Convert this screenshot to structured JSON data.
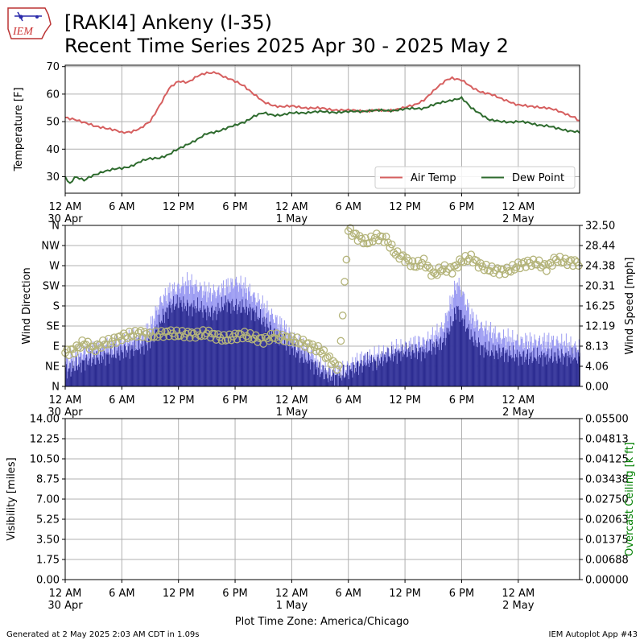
{
  "header": {
    "logo_text": "IEM",
    "title_line1": "[RAKI4] Ankeny (I-35)",
    "title_line2": "Recent Time Series 2025 Apr 30 - 2025 May 2"
  },
  "footer": {
    "generated": "Generated at 2 May 2025 2:03 AM CDT in 1.09s",
    "app": "IEM Autoplot App #43",
    "timezone_label": "Plot Time Zone: America/Chicago"
  },
  "x_axis": {
    "range_hours": [
      0,
      54.5
    ],
    "ticks": [
      {
        "h": 0,
        "label": "12 AM",
        "sub": "30 Apr"
      },
      {
        "h": 6,
        "label": "6 AM",
        "sub": ""
      },
      {
        "h": 12,
        "label": "12 PM",
        "sub": ""
      },
      {
        "h": 18,
        "label": "6 PM",
        "sub": ""
      },
      {
        "h": 24,
        "label": "12 AM",
        "sub": "1 May"
      },
      {
        "h": 30,
        "label": "6 AM",
        "sub": ""
      },
      {
        "h": 36,
        "label": "12 PM",
        "sub": ""
      },
      {
        "h": 42,
        "label": "6 PM",
        "sub": ""
      },
      {
        "h": 48,
        "label": "12 AM",
        "sub": "2 May"
      }
    ]
  },
  "colors": {
    "air_temp": "#d65f5f",
    "dew_point": "#2e6b2e",
    "gust": "#9b9bf2",
    "speed": "#2a2a8f",
    "direction": "#b4b47a",
    "ceiling_label": "#008000",
    "grid": "#b0b0b0"
  },
  "chart_data": [
    {
      "type": "line",
      "ylabel": "Temperature [F]",
      "ylim": [
        24,
        70.5
      ],
      "yticks": [
        "30",
        "40",
        "50",
        "60",
        "70"
      ],
      "ytick_values": [
        30,
        40,
        50,
        60,
        70
      ],
      "grid": true,
      "legend_placement": "lower-right",
      "series": [
        {
          "name": "Air Temp",
          "x": [
            0,
            1,
            2,
            3,
            4,
            5,
            5.5,
            6,
            7,
            8,
            9,
            10,
            11,
            12,
            13,
            14,
            15,
            16,
            17,
            18,
            19,
            20,
            21,
            22,
            23,
            24,
            26,
            28,
            30,
            32,
            34,
            36,
            37,
            38,
            39,
            40,
            40.5,
            41,
            42,
            43,
            44,
            45,
            46,
            47,
            48,
            49,
            50,
            51,
            52,
            53,
            54,
            54.5
          ],
          "values": [
            51.5,
            51,
            49.5,
            48.5,
            48,
            47,
            46.5,
            46,
            46.5,
            47.5,
            50,
            56,
            62,
            64.5,
            64.5,
            66.5,
            67.5,
            68,
            66,
            64.5,
            63,
            60,
            57,
            56,
            55.5,
            55.5,
            55,
            54.5,
            54,
            54,
            54,
            55,
            56,
            58,
            61,
            64,
            65.5,
            66,
            65,
            62.5,
            61,
            60,
            58.5,
            57.5,
            56,
            55.5,
            55.5,
            55,
            54,
            53,
            51.5,
            50
          ]
        },
        {
          "name": "Dew Point",
          "x": [
            0,
            0.5,
            1,
            1.5,
            2,
            3,
            4,
            5,
            6,
            7,
            8,
            9,
            10,
            11,
            12,
            13,
            14,
            15,
            16,
            17,
            18,
            19,
            20,
            21,
            22,
            23,
            24,
            26,
            28,
            30,
            32,
            34,
            36,
            38,
            39,
            40,
            41,
            42,
            43,
            44,
            45,
            46,
            47,
            48,
            49,
            50,
            51,
            52,
            53,
            54,
            54.5
          ],
          "values": [
            30,
            27.5,
            30,
            29.5,
            28.5,
            30.5,
            32,
            32.5,
            33,
            34,
            35.5,
            36.5,
            37,
            38,
            40,
            42,
            43.5,
            45.5,
            46.5,
            47.5,
            48.5,
            50,
            52,
            53,
            52.5,
            52.5,
            53,
            53.5,
            53.5,
            53.5,
            54,
            54,
            54.5,
            55,
            56,
            57,
            58,
            58.5,
            55,
            53,
            50.5,
            50,
            50,
            50,
            49.5,
            49,
            48.5,
            47.5,
            47,
            46.5,
            46
          ]
        }
      ]
    },
    {
      "type": "bar",
      "ylabel": "Wind Direction",
      "ylabel_right": "Wind Speed [mph]",
      "ylim": [
        0,
        360
      ],
      "yticks": [
        "N",
        "NE",
        "E",
        "SE",
        "S",
        "SW",
        "W",
        "NW",
        "N"
      ],
      "ytick_values": [
        0,
        45,
        90,
        135,
        180,
        225,
        270,
        315,
        360
      ],
      "ylim_right": [
        0,
        32.5
      ],
      "yticks_right": [
        "0.00",
        "4.06",
        "8.13",
        "12.19",
        "16.25",
        "20.31",
        "24.38",
        "28.44",
        "32.50"
      ],
      "grid": true,
      "series": [
        {
          "name": "Wind Gust",
          "x": [
            0,
            2,
            4,
            6,
            8,
            9,
            10,
            11,
            12,
            13,
            14,
            15,
            16,
            17,
            18,
            19,
            20,
            21,
            22,
            23,
            24,
            25,
            26,
            27,
            28,
            29,
            30,
            31,
            32,
            33,
            34,
            36,
            38,
            39,
            40,
            41,
            41.5,
            42,
            43,
            44,
            45,
            46,
            48,
            50,
            52,
            54
          ],
          "values": [
            5,
            7,
            8,
            9,
            10,
            12,
            17,
            19,
            20,
            21,
            20,
            19,
            19,
            20,
            21,
            20,
            18,
            16,
            14,
            12,
            10,
            8,
            7,
            4,
            3,
            3,
            4,
            5,
            6,
            6,
            7,
            8,
            9,
            10,
            12,
            18,
            21,
            19,
            14,
            12,
            11,
            10,
            9,
            9,
            9,
            8
          ]
        },
        {
          "name": "Wind Speed",
          "x": [
            0,
            2,
            4,
            6,
            8,
            9,
            10,
            11,
            12,
            13,
            14,
            15,
            16,
            17,
            18,
            19,
            20,
            21,
            22,
            23,
            24,
            25,
            26,
            27,
            28,
            29,
            30,
            31,
            32,
            33,
            34,
            36,
            38,
            39,
            40,
            41,
            41.5,
            42,
            43,
            44,
            45,
            46,
            48,
            50,
            52,
            54
          ],
          "values": [
            3,
            5,
            6,
            7,
            8,
            9,
            13,
            16,
            17,
            16,
            16,
            15,
            15,
            17,
            16,
            16,
            15,
            13,
            11,
            9,
            8,
            6,
            5,
            3,
            2,
            2,
            3,
            4,
            5,
            5,
            6,
            7,
            7,
            8,
            9,
            13,
            16,
            14,
            10,
            8,
            7,
            7,
            6,
            6,
            6,
            6
          ]
        },
        {
          "name": "Wind Direction",
          "x": [
            0,
            1,
            2,
            3,
            4,
            5,
            6,
            7,
            8,
            9,
            10,
            11,
            12,
            13,
            14,
            15,
            16,
            17,
            18,
            19,
            20,
            21,
            22,
            23,
            24,
            25,
            26,
            27,
            28,
            29,
            30,
            31,
            32,
            33,
            34,
            35,
            36,
            37,
            38,
            39,
            40,
            41,
            42,
            43,
            44,
            45,
            46,
            47,
            48,
            49,
            50,
            51,
            52,
            53,
            54
          ],
          "values": [
            75,
            80,
            95,
            80,
            90,
            95,
            105,
            110,
            115,
            110,
            115,
            120,
            118,
            120,
            120,
            125,
            118,
            112,
            118,
            120,
            112,
            105,
            112,
            108,
            102,
            95,
            85,
            75,
            55,
            35,
            345,
            330,
            320,
            335,
            330,
            300,
            290,
            275,
            285,
            255,
            270,
            265,
            285,
            290,
            270,
            260,
            255,
            255,
            265,
            270,
            270,
            260,
            280,
            275,
            275
          ]
        }
      ]
    },
    {
      "type": "line",
      "ylabel": "Visibility [miles]",
      "ylabel_right": "Overcast Ceiling [k ft]",
      "ylim": [
        0,
        14
      ],
      "yticks": [
        "0.00",
        "1.75",
        "3.50",
        "5.25",
        "7.00",
        "8.75",
        "10.50",
        "12.25",
        "14.00"
      ],
      "ytick_values": [
        0,
        1.75,
        3.5,
        5.25,
        7,
        8.75,
        10.5,
        12.25,
        14
      ],
      "yticks_right": [
        "0.00000",
        "0.00688",
        "0.01375",
        "0.02063",
        "0.02750",
        "0.03438",
        "0.04125",
        "0.04813",
        "0.05500"
      ],
      "grid": true,
      "series": []
    }
  ]
}
